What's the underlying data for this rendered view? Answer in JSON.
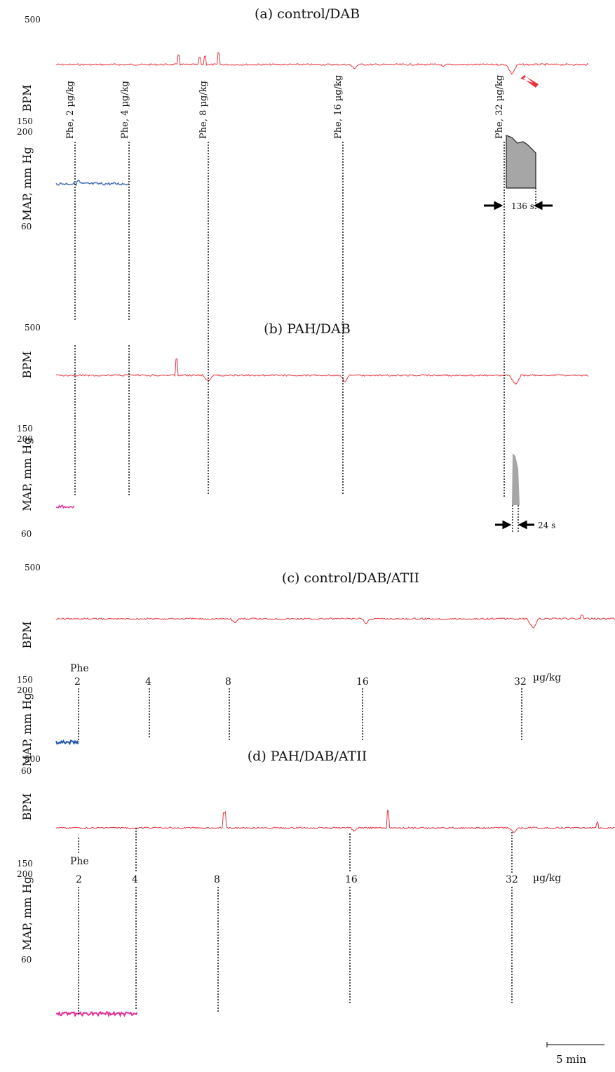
{
  "chart_data": [
    {
      "type": "line",
      "title": "(a) control/DAB",
      "bpm_axis": {
        "label": "BPM",
        "ticks": [
          "500",
          "150"
        ]
      },
      "map_axis": {
        "label": "MAP, mm Hg",
        "ticks": [
          "200",
          "60"
        ]
      },
      "doses": [
        "Phe, 2 µg/kg",
        "Phe, 4 µg/kg",
        "Phe, 8 µg/kg",
        "Phe, 16 µg/kg",
        "Phe, 32 µg/kg"
      ],
      "duration_label": "136 s",
      "map_color": "#4a6fb8",
      "bpm_color": "#e8323c",
      "arrow_color": "#e8323c"
    },
    {
      "type": "line",
      "title": "(b) PAH/DAB",
      "bpm_axis": {
        "label": "BPM",
        "ticks": [
          "500",
          "150"
        ]
      },
      "map_axis": {
        "label": "MAP, mm Hg",
        "ticks": [
          "200",
          "60"
        ]
      },
      "duration_label": "24 s",
      "map_color": "#e0309a",
      "bpm_color": "#e8323c"
    },
    {
      "type": "line",
      "title": "(c) control/DAB/ATII",
      "bpm_axis": {
        "label": "BPM",
        "ticks": [
          "500",
          "150"
        ]
      },
      "map_axis": {
        "label": "MAP, mm Hg",
        "ticks": [
          "200",
          "60"
        ]
      },
      "dose_prefix": "Phe",
      "doses": [
        "2",
        "4",
        "8",
        "16",
        "32"
      ],
      "dose_unit": "µg/kg",
      "map_color": "#1f56a8",
      "bpm_color": "#e8323c"
    },
    {
      "type": "line",
      "title": "(d) PAH/DAB/ATII",
      "bpm_axis": {
        "label": "BPM",
        "ticks": [
          "500",
          "150"
        ]
      },
      "map_axis": {
        "label": "MAP, mm Hg",
        "ticks": [
          "200",
          "60"
        ]
      },
      "dose_prefix": "Phe",
      "doses": [
        "2",
        "4",
        "8",
        "16",
        "32"
      ],
      "dose_unit": "µg/kg",
      "map_color": "#e0309a",
      "bpm_color": "#e8323c"
    }
  ],
  "scale_bar": {
    "label": "5 min"
  }
}
